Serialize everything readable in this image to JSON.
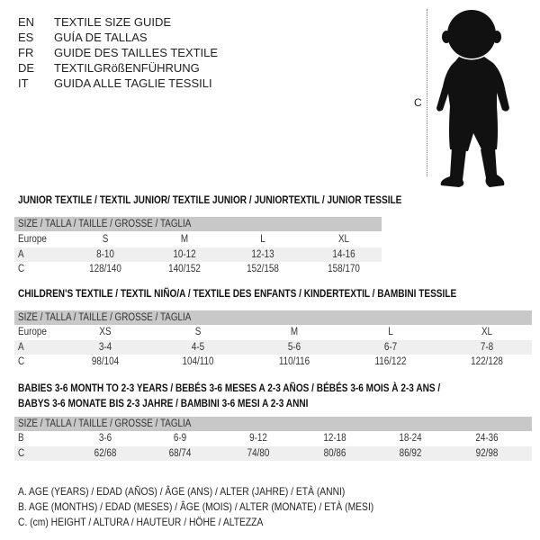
{
  "languages": [
    {
      "code": "EN",
      "text": "TEXTILE SIZE GUIDE"
    },
    {
      "code": "ES",
      "text": "GUÍA DE TALLAS"
    },
    {
      "code": "FR",
      "text": "GUIDE DES TAILLES TEXTILE"
    },
    {
      "code": "DE",
      "text": "TEXTILGRößENFÜHRUNG"
    },
    {
      "code": "IT",
      "text": "GUIDA ALLE TAGLIE TESSILI"
    }
  ],
  "figure": {
    "measure_label": "C",
    "icon": "baby-silhouette-icon"
  },
  "junior": {
    "title": "JUNIOR TEXTILE / TEXTIL JUNIOR/ TEXTILE JUNIOR / JUNIORTEXTIL / JUNIOR TESSILE",
    "header": "SIZE / TALLA / TAILLE / GRÖSSE / TAGLIA",
    "rows": [
      {
        "label": "Europe",
        "values": [
          "S",
          "M",
          "L",
          "XL"
        ]
      },
      {
        "label": "A",
        "values": [
          "8-10",
          "10-12",
          "12-13",
          "14-16"
        ]
      },
      {
        "label": "C",
        "values": [
          "128/140",
          "140/152",
          "152/158",
          "158/170"
        ]
      }
    ]
  },
  "children": {
    "title": "CHILDREN'S TEXTILE / TEXTIL NIÑO/A / TEXTILE DES ENFANTS / KINDERTEXTIL / BAMBINI TESSILE",
    "header": "SIZE / TALLA / TAILLE / GRÖSSE / TAGLIA",
    "rows": [
      {
        "label": "Europe",
        "values": [
          "XS",
          "S",
          "M",
          "L",
          "XL"
        ]
      },
      {
        "label": "A",
        "values": [
          "3-4",
          "4-5",
          "5-6",
          "6-7",
          "7-8"
        ]
      },
      {
        "label": "C",
        "values": [
          "98/104",
          "104/110",
          "110/116",
          "116/122",
          "122/128"
        ]
      }
    ]
  },
  "babies": {
    "title_line1": "BABIES 3-6 MONTH TO 2-3 YEARS / BEBÉS 3-6 MESES A 2-3 AÑOS / BÉBÉS 3-6 MOIS À 2-3 ANS /",
    "title_line2": "BABYS 3-6 MONATE BIS 2-3 JAHRE / BAMBINI 3-6 MESI A 2-3 ANNI",
    "header": "SIZE / TALLA / TAILLE / GRÖSSE / TAGLIA",
    "rows": [
      {
        "label": "B",
        "values": [
          "3-6",
          "6-9",
          "9-12",
          "12-18",
          "18-24",
          "24-36"
        ]
      },
      {
        "label": "C",
        "values": [
          "62/68",
          "68/74",
          "74/80",
          "80/86",
          "86/92",
          "92/98"
        ]
      }
    ]
  },
  "legend": [
    "A. AGE (YEARS) / EDAD (AÑOS) / ÂGE (ANS) / ALTER (JAHRE) / ETÀ (ANNI)",
    "B. AGE (MONTHS) / EDAD (MESES) / ÂGE (MOIS) / ALTER (MONATE) / ETÀ (MESI)",
    "C. (cm) HEIGHT / ALTURA / HAUTEUR / HÖHE / ALTEZZA"
  ]
}
